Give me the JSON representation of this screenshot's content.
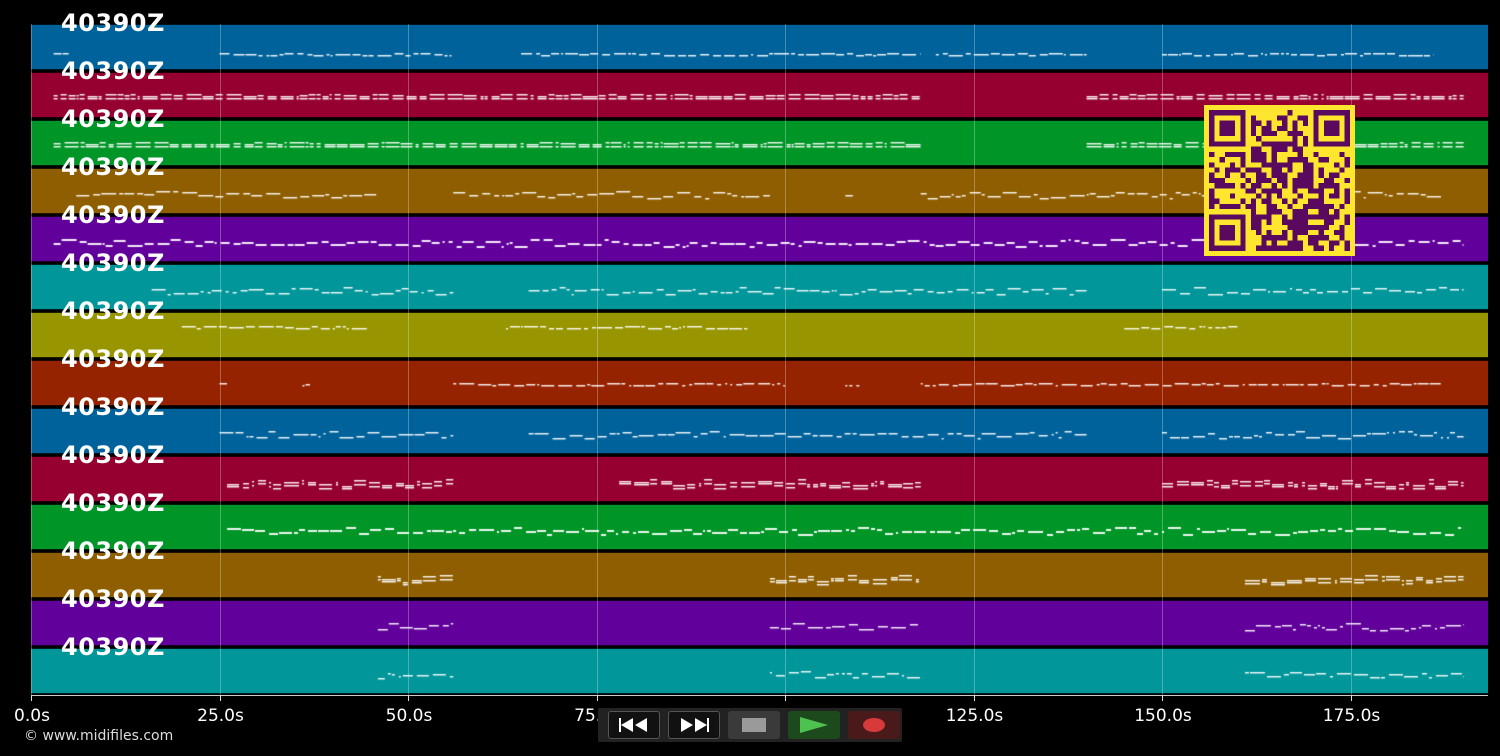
{
  "tracks": [
    {
      "label": "40390Z",
      "color": "#00629a"
    },
    {
      "label": "40390Z",
      "color": "#960030"
    },
    {
      "label": "40390Z",
      "color": "#009627"
    },
    {
      "label": "40390Z",
      "color": "#8f5e00"
    },
    {
      "label": "40390Z",
      "color": "#61009a"
    },
    {
      "label": "40390Z",
      "color": "#00969a"
    },
    {
      "label": "40390Z",
      "color": "#989600"
    },
    {
      "label": "40390Z",
      "color": "#962300"
    },
    {
      "label": "40390Z",
      "color": "#00629a"
    },
    {
      "label": "40390Z",
      "color": "#960030"
    },
    {
      "label": "40390Z",
      "color": "#009627"
    },
    {
      "label": "40390Z",
      "color": "#8f5e00"
    },
    {
      "label": "40390Z",
      "color": "#61009a"
    },
    {
      "label": "40390Z",
      "color": "#00969a"
    }
  ],
  "timeline": {
    "ticks": [
      "0.0s",
      "25.0s",
      "50.0s",
      "75.0s",
      "100.0s",
      "125.0s",
      "150.0s",
      "175.0s"
    ]
  },
  "copyright": "© www.midifiles.com",
  "qr": {
    "fg": "#5a0a5e",
    "bg": "#ffe62e"
  },
  "controls": [
    {
      "name": "rewind-button",
      "icon": "rewind-icon"
    },
    {
      "name": "fast-forward-button",
      "icon": "fast-forward-icon"
    },
    {
      "name": "stop-button",
      "icon": "stop-icon"
    },
    {
      "name": "play-button",
      "icon": "play-icon"
    },
    {
      "name": "record-button",
      "icon": "record-icon"
    }
  ]
}
